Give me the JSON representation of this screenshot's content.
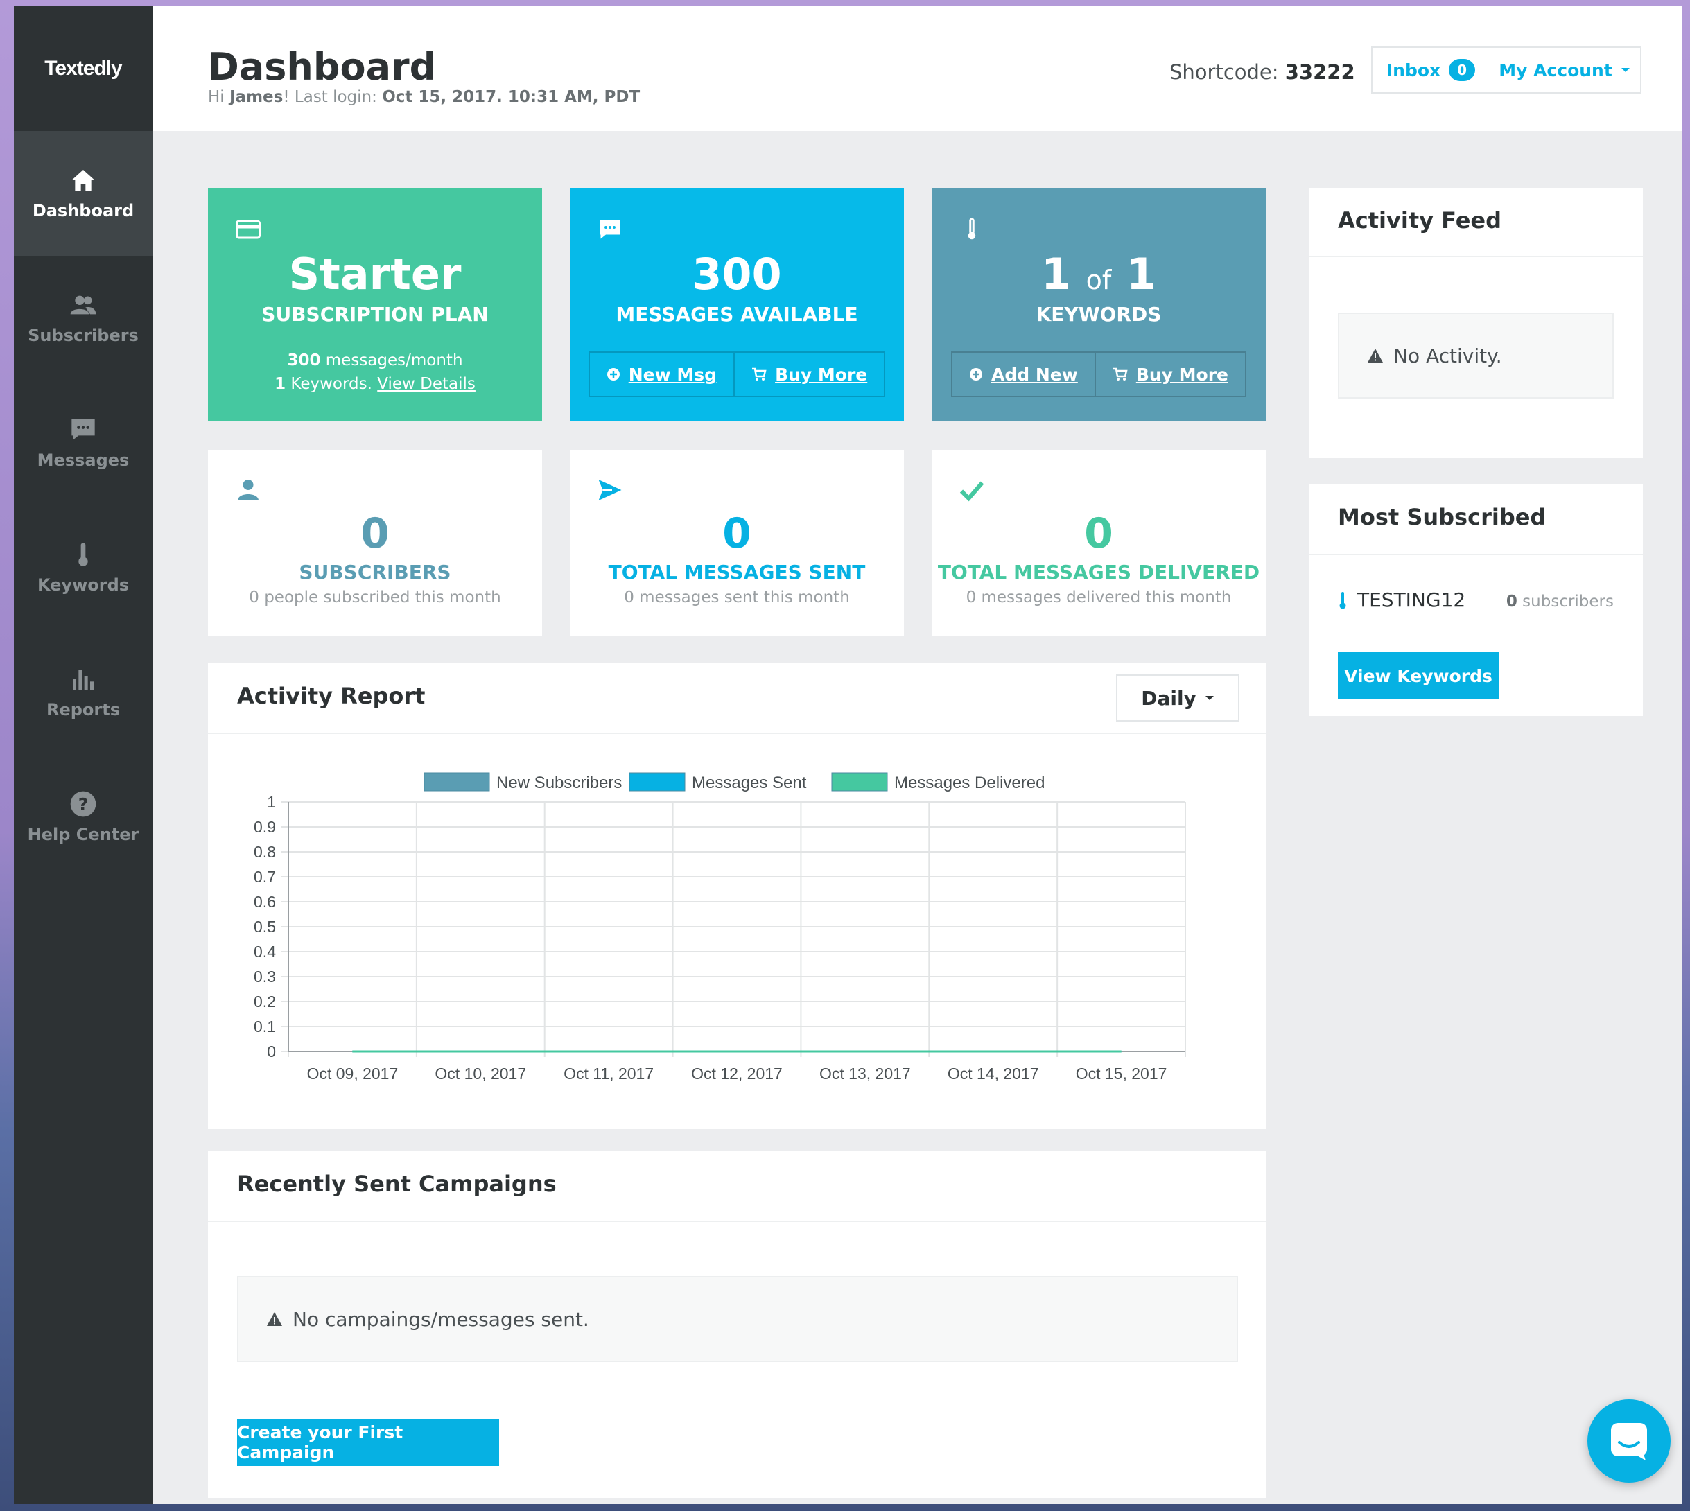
{
  "app": {
    "logo": "Textedly"
  },
  "sidebar": {
    "items": [
      {
        "label": "Dashboard",
        "icon": "home-icon",
        "active": true
      },
      {
        "label": "Subscribers",
        "icon": "users-icon"
      },
      {
        "label": "Messages",
        "icon": "chat-icon"
      },
      {
        "label": "Keywords",
        "icon": "thermometer-icon"
      },
      {
        "label": "Reports",
        "icon": "bar-chart-icon"
      },
      {
        "label": "Help Center",
        "icon": "question-icon"
      }
    ]
  },
  "header": {
    "title": "Dashboard",
    "greeting_prefix": "Hi ",
    "user": "James",
    "login_prefix": "! Last login: ",
    "last_login": "Oct 15, 2017. 10:31 AM, PDT",
    "shortcode_label": "Shortcode: ",
    "shortcode": "33222",
    "inbox_label": "Inbox",
    "inbox_count": "0",
    "account_label": "My Account"
  },
  "plan": {
    "name": "Starter",
    "label": "SUBSCRIPTION PLAN",
    "messages_count": "300",
    "messages_suffix": " messages/month",
    "keywords_count": "1",
    "keywords_suffix": " Keywords. ",
    "details_link": "View Details"
  },
  "messages_card": {
    "value": "300",
    "label": "MESSAGES AVAILABLE",
    "new_btn": "New Msg",
    "buy_btn": "Buy More"
  },
  "keywords_card": {
    "used": "1",
    "of": "of",
    "total": "1",
    "label": "KEYWORDS",
    "add_btn": "Add New",
    "buy_btn": "Buy More"
  },
  "stats": [
    {
      "value": "0",
      "label": "SUBSCRIBERS",
      "note": "0 people subscribed this month",
      "color": "#5a9db3"
    },
    {
      "value": "0",
      "label": "TOTAL MESSAGES SENT",
      "note": "0 messages sent this month",
      "color": "#06b1e3"
    },
    {
      "value": "0",
      "label": "TOTAL MESSAGES DELIVERED",
      "note": "0 messages delivered this month",
      "color": "#45c8a0"
    }
  ],
  "activity_report": {
    "title": "Activity Report",
    "period": "Daily"
  },
  "chart_data": {
    "type": "line",
    "categories": [
      "Oct 09, 2017",
      "Oct 10, 2017",
      "Oct 11, 2017",
      "Oct 12, 2017",
      "Oct 13, 2017",
      "Oct 14, 2017",
      "Oct 15, 2017"
    ],
    "series": [
      {
        "name": "New Subscribers",
        "values": [
          0,
          0,
          0,
          0,
          0,
          0,
          0
        ],
        "color": "#5a9db3"
      },
      {
        "name": "Messages Sent",
        "values": [
          0,
          0,
          0,
          0,
          0,
          0,
          0
        ],
        "color": "#06b1e3"
      },
      {
        "name": "Messages Delivered",
        "values": [
          0,
          0,
          0,
          0,
          0,
          0,
          0
        ],
        "color": "#45c8a0"
      }
    ],
    "yticks": [
      "0",
      "0.1",
      "0.2",
      "0.3",
      "0.4",
      "0.5",
      "0.6",
      "0.7",
      "0.8",
      "0.9",
      "1"
    ],
    "ylim": [
      0,
      1
    ],
    "grid": true,
    "legend": "top"
  },
  "campaigns": {
    "title": "Recently Sent Campaigns",
    "empty": "No campaings/messages sent.",
    "cta": "Create your First Campaign"
  },
  "activity_feed": {
    "title": "Activity Feed",
    "empty": "No Activity."
  },
  "most_subscribed": {
    "title": "Most Subscribed",
    "keyword": "TESTING12",
    "count": "0",
    "count_suffix": " subscribers",
    "cta": "View Keywords"
  },
  "colors": {
    "green": "#45c8a0",
    "blue": "#06b1e3",
    "teal": "#5a9db3",
    "sidebar": "#2d3234"
  }
}
